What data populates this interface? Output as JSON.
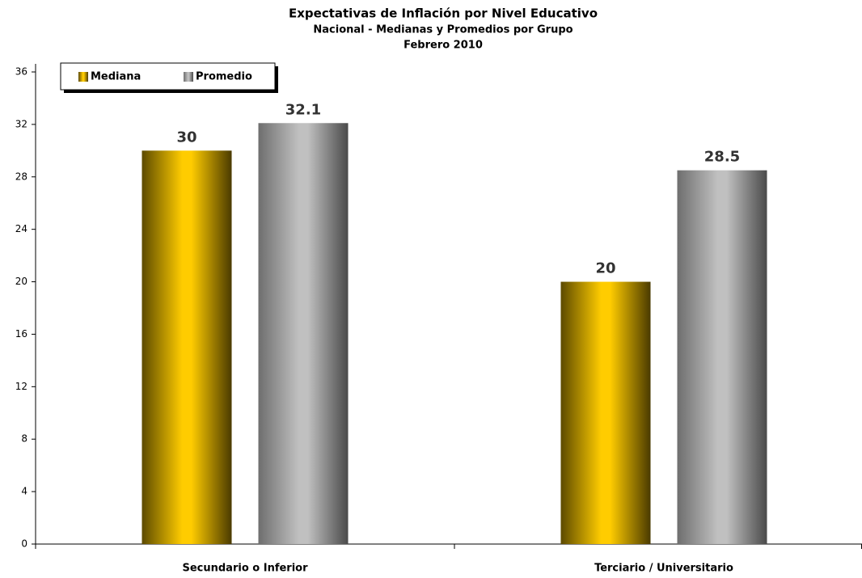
{
  "chart_data": {
    "type": "bar",
    "title": "Expectativas de Inflación por Nivel Educativo",
    "subtitle": "Nacional - Medianas y Promedios por Grupo",
    "subtitle2": "Febrero 2010",
    "categories": [
      "Secundario o Inferior",
      "Terciario / Universitario"
    ],
    "series": [
      {
        "name": "Mediana",
        "color": "#ffcc00",
        "values": [
          30,
          20
        ]
      },
      {
        "name": "Promedio",
        "color": "#c0c0c0",
        "values": [
          32.1,
          28.5
        ]
      }
    ],
    "ylim": [
      0,
      36
    ],
    "yticks": [
      0,
      4,
      8,
      12,
      16,
      20,
      24,
      28,
      32,
      36
    ],
    "legend": "top-left"
  }
}
